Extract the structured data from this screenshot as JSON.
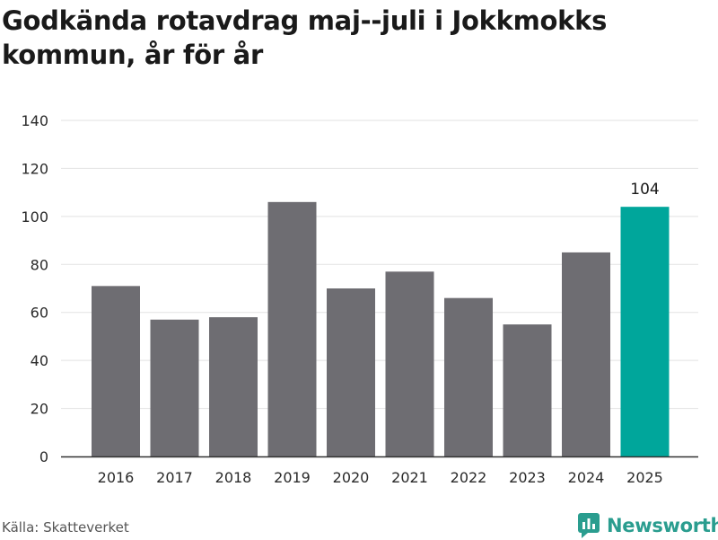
{
  "header": {
    "title": "Godkända rotavdrag maj--juli i Jokkmokks kommun, år för år"
  },
  "footer": {
    "source": "Källa: Skatteverket",
    "brand": "Newsworthy"
  },
  "colors": {
    "bar": "#6e6d72",
    "highlight": "#00a69b",
    "grid": "#e2e2e2",
    "axis": "#333333",
    "text": "#2a2a2a",
    "brand": "#2a9d8f"
  },
  "icons": {
    "brand_logo": "newsworthy-logo-icon"
  },
  "chart_data": {
    "type": "bar",
    "title": "Godkända rotavdrag maj--juli i Jokkmokks kommun, år för år",
    "xlabel": "",
    "ylabel": "",
    "categories": [
      "2016",
      "2017",
      "2018",
      "2019",
      "2020",
      "2021",
      "2022",
      "2023",
      "2024",
      "2025"
    ],
    "values": [
      71,
      57,
      58,
      106,
      70,
      77,
      66,
      55,
      85,
      104
    ],
    "ylim": [
      0,
      140
    ],
    "yticks": [
      0,
      20,
      40,
      60,
      80,
      100,
      120,
      140
    ],
    "grid": true,
    "highlight_index": 9,
    "data_labels": [
      {
        "index": 9,
        "text": "104"
      }
    ]
  }
}
